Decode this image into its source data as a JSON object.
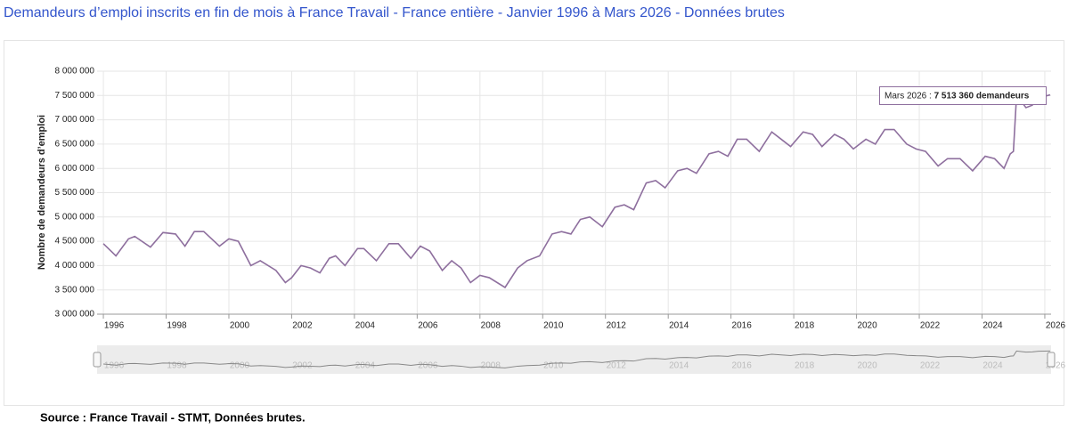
{
  "chart_data": {
    "type": "line",
    "title": "Demandeurs d’emploi inscrits en fin de mois à France Travail - France entière - Janvier 1996 à Mars 2026 - Données brutes",
    "y_label": "Nombre de demandeurs d’emploi",
    "source": "Source : France Travail - STMT, Données brutes.",
    "tooltip": {
      "label": "Mars 2026 :",
      "value_text": "7 513 360 demandeurs"
    },
    "xlim": [
      1995.8,
      2026.2
    ],
    "xticks": [
      1996,
      1998,
      2000,
      2002,
      2004,
      2006,
      2008,
      2010,
      2012,
      2014,
      2016,
      2018,
      2020,
      2022,
      2024,
      2026
    ],
    "ylim": [
      3000000,
      8000000
    ],
    "yticks": [
      {
        "value": 3000000,
        "label": "3 000 000"
      },
      {
        "value": 3500000,
        "label": "3 500 000"
      },
      {
        "value": 4000000,
        "label": "4 000 000"
      },
      {
        "value": 4500000,
        "label": "4 500 000"
      },
      {
        "value": 5000000,
        "label": "5 000 000"
      },
      {
        "value": 5500000,
        "label": "5 500 000"
      },
      {
        "value": 6000000,
        "label": "6 000 000"
      },
      {
        "value": 6500000,
        "label": "6 500 000"
      },
      {
        "value": 7000000,
        "label": "7 000 000"
      },
      {
        "value": 7500000,
        "label": "7 500 000"
      },
      {
        "value": 8000000,
        "label": "8 000 000"
      }
    ],
    "grid": true,
    "color": "#8e6f9e",
    "x": [
      1996.0,
      1996.4,
      1996.8,
      1997.0,
      1997.5,
      1997.9,
      1998.3,
      1998.6,
      1998.9,
      1999.2,
      1999.7,
      2000.0,
      2000.3,
      2000.7,
      2001.0,
      2001.5,
      2001.8,
      2002.0,
      2002.3,
      2002.6,
      2002.9,
      2003.2,
      2003.4,
      2003.7,
      2004.1,
      2004.3,
      2004.7,
      2005.1,
      2005.4,
      2005.8,
      2006.1,
      2006.4,
      2006.8,
      2007.1,
      2007.4,
      2007.7,
      2008.0,
      2008.3,
      2008.8,
      2009.2,
      2009.5,
      2009.9,
      2010.3,
      2010.6,
      2010.9,
      2011.2,
      2011.5,
      2011.9,
      2012.3,
      2012.6,
      2012.9,
      2013.3,
      2013.6,
      2013.9,
      2014.3,
      2014.6,
      2014.9,
      2015.3,
      2015.6,
      2015.9,
      2016.2,
      2016.5,
      2016.9,
      2017.3,
      2017.6,
      2017.9,
      2018.3,
      2018.6,
      2018.9,
      2019.3,
      2019.6,
      2019.9,
      2020.3,
      2020.6,
      2020.9,
      2021.2,
      2021.6,
      2021.9,
      2022.2,
      2022.6,
      2022.9,
      2023.3,
      2023.7,
      2024.1,
      2024.4,
      2024.7,
      2024.9,
      2025.0,
      2025.1,
      2025.4,
      2025.6,
      2025.8,
      2026.17
    ],
    "values": [
      4450000,
      4200000,
      4550000,
      4600000,
      4380000,
      4680000,
      4650000,
      4400000,
      4700000,
      4700000,
      4400000,
      4550000,
      4500000,
      4000000,
      4100000,
      3900000,
      3650000,
      3750000,
      4000000,
      3950000,
      3850000,
      4150000,
      4200000,
      4000000,
      4350000,
      4350000,
      4100000,
      4450000,
      4450000,
      4150000,
      4400000,
      4300000,
      3900000,
      4100000,
      3950000,
      3650000,
      3800000,
      3750000,
      3550000,
      3950000,
      4100000,
      4200000,
      4650000,
      4700000,
      4650000,
      4950000,
      5000000,
      4800000,
      5200000,
      5250000,
      5150000,
      5700000,
      5750000,
      5600000,
      5950000,
      6000000,
      5900000,
      6300000,
      6350000,
      6250000,
      6600000,
      6600000,
      6350000,
      6750000,
      6600000,
      6450000,
      6750000,
      6700000,
      6450000,
      6700000,
      6600000,
      6400000,
      6600000,
      6500000,
      6800000,
      6800000,
      6500000,
      6400000,
      6350000,
      6050000,
      6200000,
      6200000,
      5950000,
      6250000,
      6200000,
      6000000,
      6300000,
      6350000,
      7500000,
      7250000,
      7300000,
      7450000,
      7513360
    ]
  }
}
